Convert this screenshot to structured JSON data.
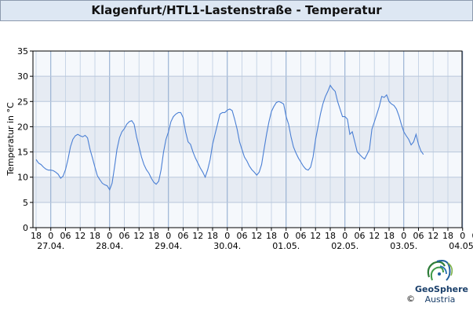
{
  "chart_data": {
    "type": "line",
    "title": "Klagenfurt/HTL1-Lastenstraße - Temperatur",
    "ylabel": "Temperatur in °C",
    "xlabel": "",
    "ylim": [
      0,
      35
    ],
    "yticks": [
      0,
      5,
      10,
      15,
      20,
      25,
      30,
      35
    ],
    "grid": true,
    "x_hour_ticks": [
      "18",
      "0",
      "06",
      "12",
      "18",
      "0",
      "06",
      "12",
      "18",
      "0",
      "06",
      "12",
      "18",
      "0",
      "06",
      "12",
      "18",
      "0",
      "06",
      "12",
      "18",
      "0",
      "06",
      "12",
      "18",
      "0",
      "06",
      "12",
      "18",
      "0",
      "06",
      "12",
      "18",
      "0",
      "06"
    ],
    "date_labels": [
      "27.04.",
      "28.04.",
      "29.04.",
      "30.04.",
      "01.05.",
      "02.05.",
      "03.05.",
      "04.05."
    ],
    "x_start": "27.04. 18:00",
    "x_end": "04.05. 08:00",
    "series": [
      {
        "color": "#4a7fd4",
        "x_hours": [
          0,
          1,
          2,
          3,
          4,
          5,
          6,
          7,
          8,
          9,
          10,
          11,
          12,
          13,
          14,
          15,
          16,
          17,
          18,
          19,
          20,
          21,
          22,
          23,
          24,
          25,
          26,
          27,
          28,
          29,
          30,
          31,
          32,
          33,
          34,
          35,
          36,
          37,
          38,
          39,
          40,
          41,
          42,
          43,
          44,
          45,
          46,
          47,
          48,
          49,
          50,
          51,
          52,
          53,
          54,
          55,
          56,
          57,
          58,
          59,
          60,
          61,
          62,
          63,
          64,
          65,
          66,
          67,
          68,
          69,
          70,
          71,
          72,
          73,
          74,
          75,
          76,
          77,
          78,
          79,
          80,
          81,
          82,
          83,
          84,
          85,
          86,
          87,
          88,
          89,
          90,
          91,
          92,
          93,
          94,
          95,
          96,
          97,
          98,
          99,
          100,
          101,
          102,
          103,
          104,
          105,
          106,
          107,
          108,
          109,
          110,
          111,
          112,
          113,
          114,
          115,
          116,
          117,
          118,
          119,
          120,
          121,
          122,
          123,
          124,
          125,
          126,
          127,
          128,
          129,
          130,
          131,
          132,
          133,
          134,
          135,
          136,
          137,
          138,
          139,
          140,
          141,
          142,
          143,
          144,
          145,
          146,
          147,
          148,
          149,
          150,
          151,
          152,
          153,
          154,
          155,
          156,
          157,
          158
        ],
        "values": [
          13.5,
          12.8,
          12.5,
          12.0,
          11.6,
          11.4,
          11.4,
          11.3,
          11.0,
          10.6,
          9.8,
          10.2,
          11.5,
          13.5,
          16.0,
          17.5,
          18.2,
          18.5,
          18.2,
          18.0,
          18.3,
          17.8,
          15.5,
          13.8,
          12.0,
          10.3,
          9.5,
          8.8,
          8.5,
          8.3,
          7.5,
          8.8,
          12.0,
          15.5,
          17.8,
          19.0,
          19.6,
          20.5,
          21.0,
          21.2,
          20.5,
          18.0,
          16.0,
          14.0,
          12.5,
          11.5,
          10.8,
          9.8,
          9.0,
          8.6,
          9.2,
          11.5,
          15.0,
          17.5,
          19.0,
          21.0,
          22.0,
          22.5,
          22.8,
          22.8,
          21.8,
          19.0,
          17.0,
          16.5,
          15.0,
          13.8,
          12.8,
          11.8,
          11.0,
          10.0,
          11.5,
          13.5,
          16.5,
          18.5,
          20.5,
          22.5,
          22.8,
          22.8,
          23.3,
          23.5,
          23.2,
          21.5,
          19.5,
          17.0,
          15.5,
          14.0,
          13.2,
          12.2,
          11.5,
          11.0,
          10.4,
          11.0,
          12.5,
          15.5,
          18.5,
          21.0,
          23.0,
          24.0,
          24.8,
          25.0,
          24.8,
          24.5,
          22.0,
          20.5,
          18.0,
          16.0,
          14.8,
          13.8,
          13.0,
          12.2,
          11.6,
          11.4,
          12.0,
          14.0,
          17.5,
          20.0,
          22.5,
          24.5,
          26.0,
          27.0,
          28.2,
          27.5,
          27.0,
          25.0,
          23.5,
          22.0,
          22.0,
          21.5,
          18.5,
          19.0,
          17.0,
          15.0,
          14.5,
          14.0,
          13.6,
          14.5,
          15.5,
          19.5,
          21.0,
          22.5,
          24.0,
          26.0,
          25.8,
          26.3,
          25.0,
          24.5,
          24.2,
          23.5,
          22.2,
          20.5,
          19.0,
          18.2,
          17.5,
          16.4,
          17.0,
          18.5,
          16.5,
          15.2,
          14.5
        ]
      }
    ]
  },
  "branding": {
    "logo_name": "GeoSphere",
    "logo_sub": "Austria",
    "copyright": "©"
  }
}
